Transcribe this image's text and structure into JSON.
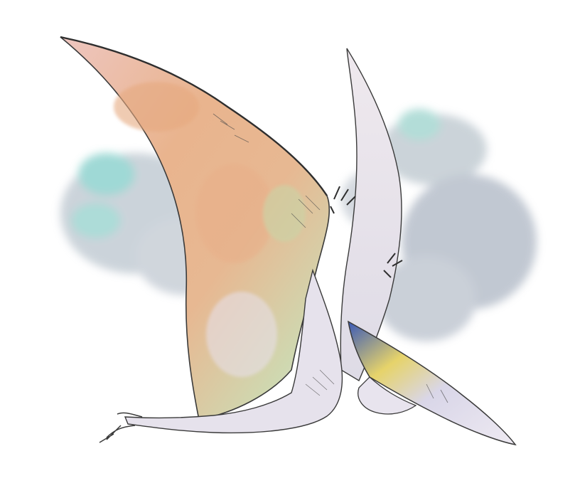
{
  "image": {
    "background_color": "#ffffff",
    "subject": "pterosaur-illustration",
    "style": "watercolor-and-ink",
    "palette": {
      "ink": "#3a3a3a",
      "wing_peach": "#e9b48e",
      "wing_pink": "#eec6c0",
      "wing_green": "#cfd8b0",
      "body_lavender": "#e6e2ec",
      "cloud_gray": "#b9c3cd",
      "cloud_teal": "#8fd3cf",
      "beak_blue": "#3a59b8",
      "beak_yellow": "#e6d36a"
    }
  }
}
